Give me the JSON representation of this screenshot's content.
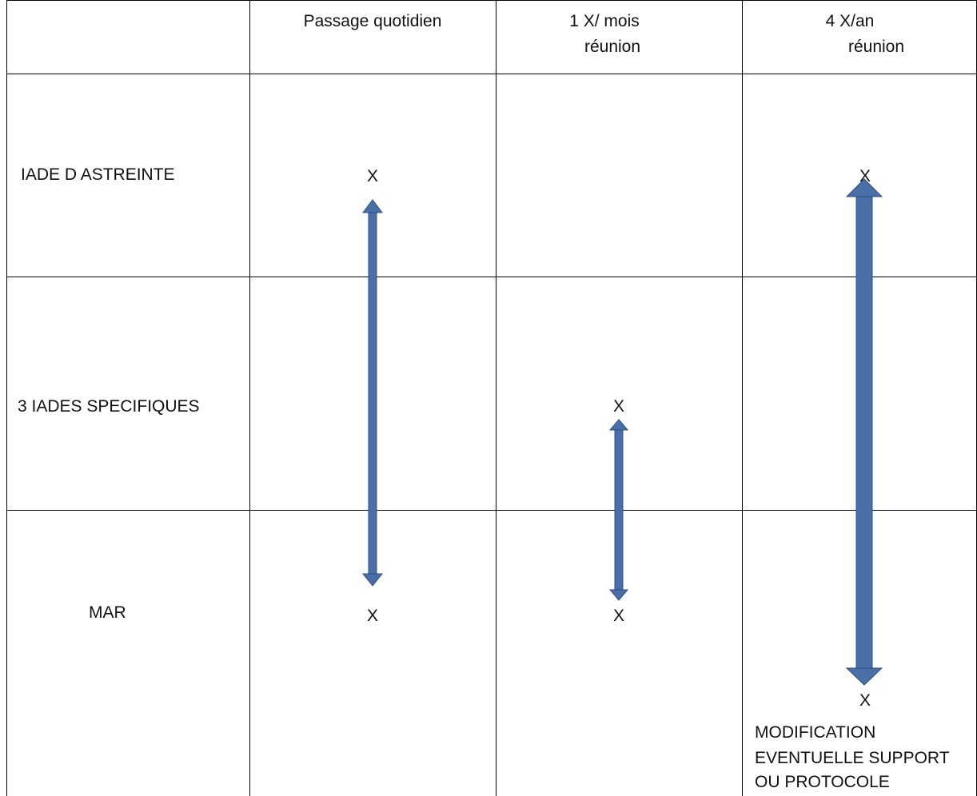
{
  "header": {
    "col1": "Passage quotidien",
    "col2_line1": "1 X/ mois",
    "col2_line2": "réunion",
    "col3_line1": "4 X/an",
    "col3_line2": "réunion"
  },
  "rows": {
    "row1": "IADE D ASTREINTE",
    "row2": "3 IADES SPECIFIQUES",
    "row3": "MAR"
  },
  "marks": {
    "x": "X"
  },
  "note": {
    "line1": "MODIFICATION",
    "line2": "EVENTUELLE SUPPORT",
    "line3": "OU PROTOCOLE"
  },
  "colors": {
    "arrow_fill": "#4a6fa6",
    "arrow_stroke": "#2f4f80",
    "grid_line": "#000000"
  }
}
